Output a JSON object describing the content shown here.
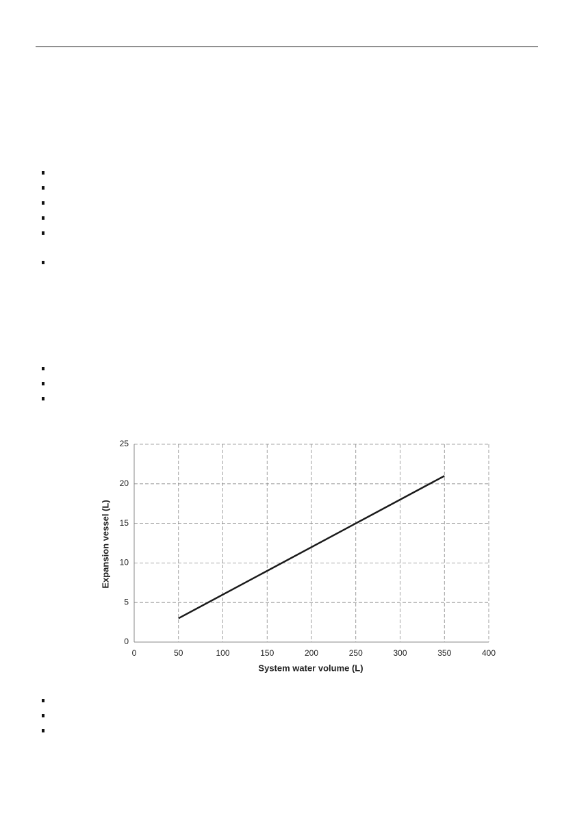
{
  "chart_data": {
    "type": "line",
    "x": [
      50,
      350
    ],
    "values": [
      3,
      21
    ],
    "color": "#1a1a1a",
    "xlim": [
      0,
      400
    ],
    "xticks": [
      0,
      50,
      100,
      150,
      200,
      250,
      300,
      350,
      400
    ],
    "ylim": [
      0,
      25
    ],
    "yticks": [
      0,
      5,
      10,
      15,
      20,
      25
    ],
    "xlabel": "System water volume (L)",
    "ylabel": "Expansion vessel (L)",
    "grid": true
  }
}
